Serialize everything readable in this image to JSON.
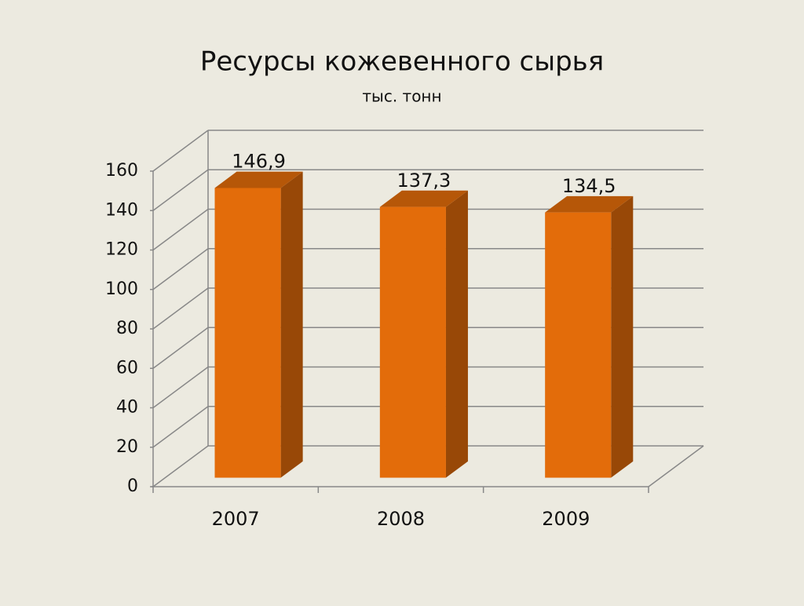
{
  "chart_data": {
    "type": "bar3d",
    "title": "Ресурсы кожевенного сырья",
    "subtitle": "тыс. тонн",
    "categories": [
      "2007",
      "2008",
      "2009"
    ],
    "values": [
      146.9,
      137.3,
      134.5
    ],
    "value_labels": [
      "146,9",
      "137,3",
      "134,5"
    ],
    "color": "#e36c0a",
    "ylim": [
      0,
      160
    ],
    "yticks": [
      0,
      20,
      40,
      60,
      80,
      100,
      120,
      140,
      160
    ],
    "grid": true
  }
}
